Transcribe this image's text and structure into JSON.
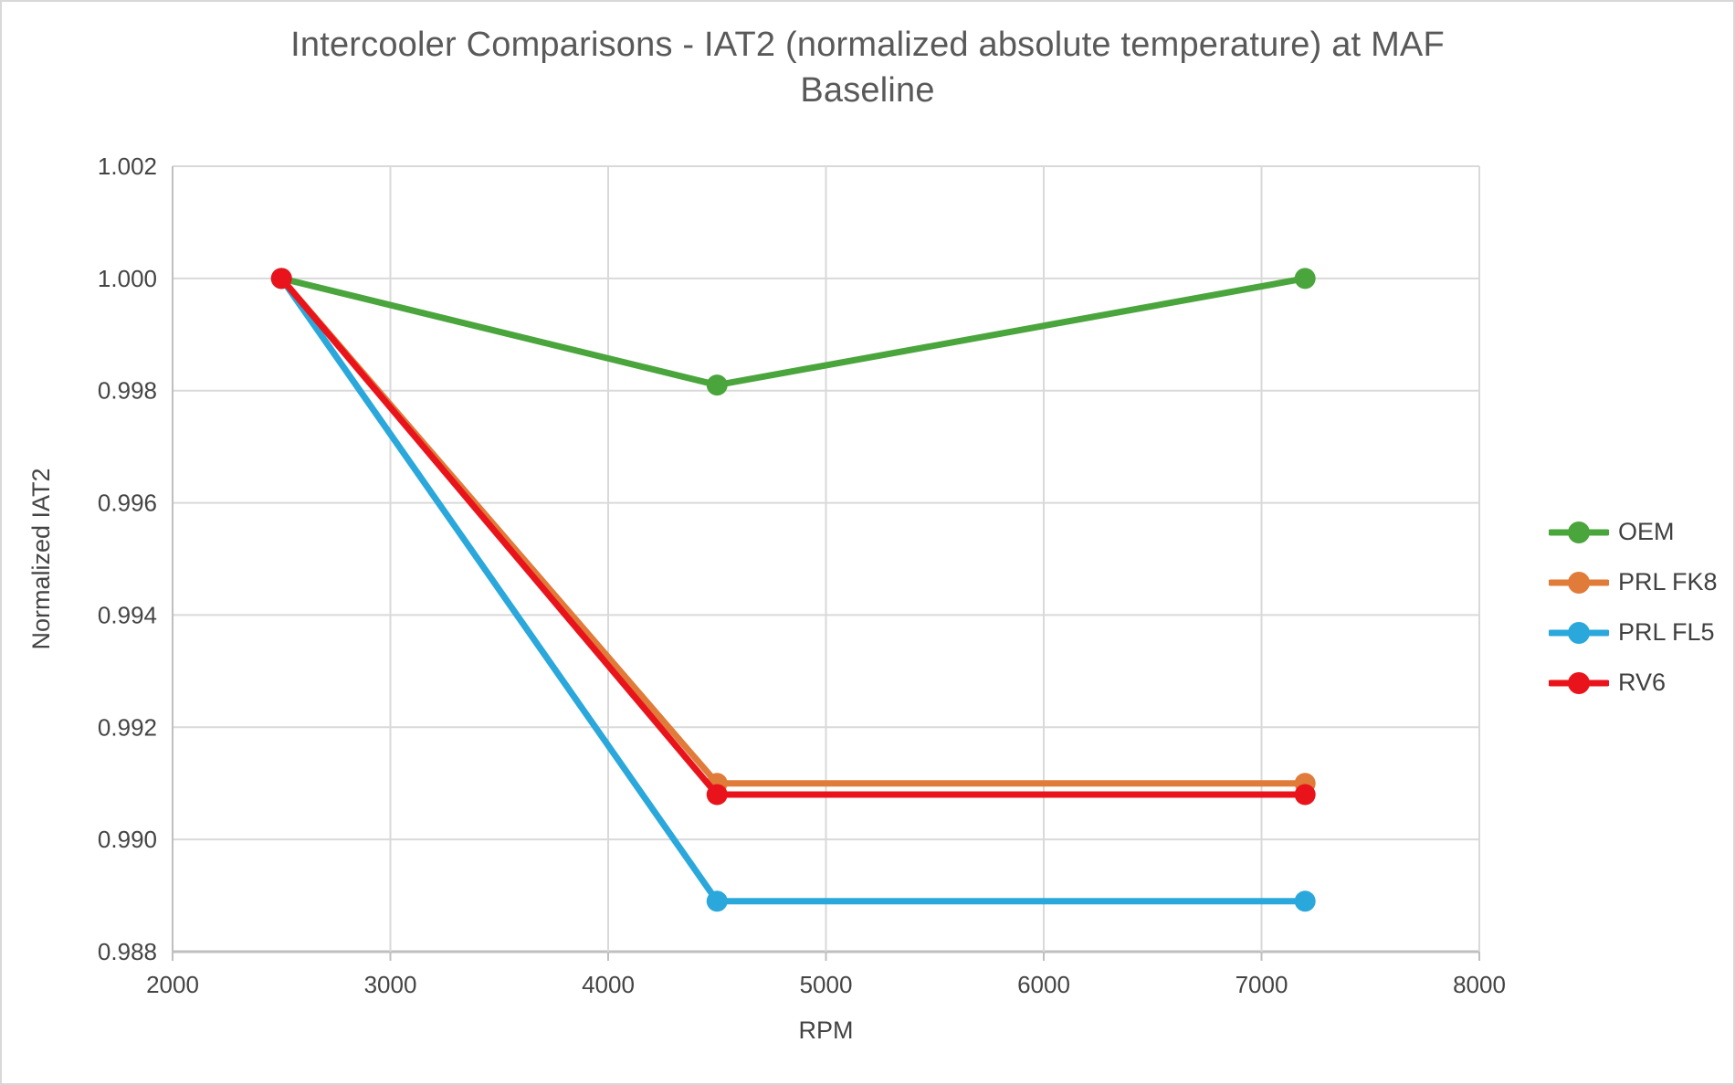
{
  "window": {
    "background": "#ffffff",
    "border_color": "#d8d8d8"
  },
  "chart_data": {
    "type": "line",
    "title": "Intercooler Comparisons - IAT2 (normalized absolute temperature) at MAF Baseline",
    "title_lines": [
      "Intercooler Comparisons - IAT2 (normalized absolute temperature) at MAF",
      "Baseline"
    ],
    "xlabel": "RPM",
    "ylabel": "Normalized IAT2",
    "x": [
      2500,
      4500,
      7200
    ],
    "series": [
      {
        "name": "OEM",
        "color": "#4aa53c",
        "values": [
          1.0,
          0.9981,
          1.0
        ]
      },
      {
        "name": "PRL FK8",
        "color": "#e07b39",
        "values": [
          1.0,
          0.991,
          0.991
        ]
      },
      {
        "name": "PRL FL5",
        "color": "#2ba8db",
        "values": [
          1.0,
          0.9889,
          0.9889
        ]
      },
      {
        "name": "RV6",
        "color": "#e9141b",
        "values": [
          1.0,
          0.9908,
          0.9908
        ]
      }
    ],
    "x_axis": {
      "min": 2000,
      "max": 8000,
      "tick_labels": [
        "2000",
        "3000",
        "4000",
        "5000",
        "6000",
        "7000",
        "8000"
      ]
    },
    "y_axis": {
      "min": 0.988,
      "max": 1.002,
      "tick_labels": [
        "0.988",
        "0.990",
        "0.992",
        "0.994",
        "0.996",
        "0.998",
        "1.000",
        "1.002"
      ]
    },
    "grid": true,
    "legend_position": "right",
    "marker": "circle",
    "colors": {
      "gridline": "#d9d9d9",
      "axis_line": "#bfbfbf",
      "tick_text": "#444444",
      "title_text": "#595959"
    }
  }
}
